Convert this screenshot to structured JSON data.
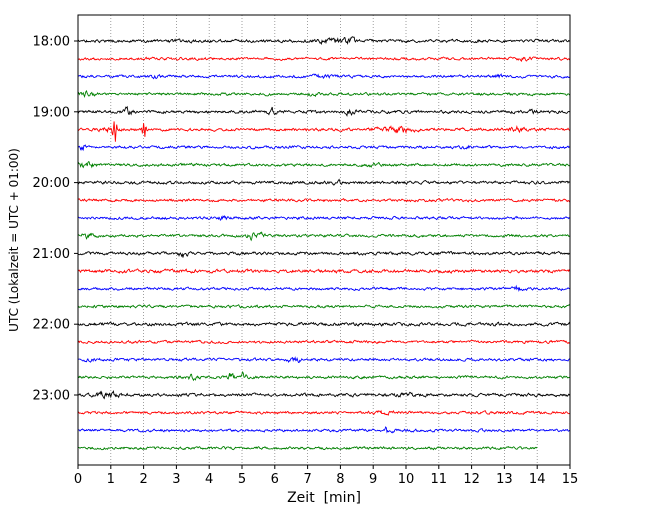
{
  "chart_data": {
    "type": "line",
    "title": "",
    "xlabel": "Zeit  [min]",
    "ylabel": "UTC (Lokalzeit = UTC + 01:00)",
    "xlim": [
      0,
      15
    ],
    "x_ticks": [
      0,
      1,
      2,
      3,
      4,
      5,
      6,
      7,
      8,
      9,
      10,
      11,
      12,
      13,
      14,
      15
    ],
    "y_tick_labels": [
      "18:00",
      "19:00",
      "20:00",
      "21:00",
      "22:00",
      "23:00"
    ],
    "traces_per_hour": 4,
    "minutes_per_trace": 15,
    "grid": {
      "vertical": true,
      "style": "dotted",
      "color": "#888888"
    },
    "colors_cycle": [
      "#000000",
      "#ff0000",
      "#0000ff",
      "#008000"
    ],
    "traces": [
      {
        "start": "18:00",
        "color": "#000000",
        "amp": 1.1,
        "events": [
          {
            "t": 2.9,
            "w": 0.15,
            "amp": 1.0
          },
          {
            "t": 7.7,
            "w": 0.5,
            "amp": 1.2
          },
          {
            "t": 8.3,
            "w": 0.2,
            "amp": 1.5
          }
        ]
      },
      {
        "start": "18:15",
        "color": "#ff0000",
        "amp": 1.0,
        "events": [
          {
            "t": 13.6,
            "w": 0.2,
            "amp": 0.8
          }
        ]
      },
      {
        "start": "18:30",
        "color": "#0000ff",
        "amp": 1.0,
        "events": [
          {
            "t": 2.3,
            "w": 0.2,
            "amp": 1.0
          },
          {
            "t": 7.5,
            "w": 0.3,
            "amp": 1.0
          },
          {
            "t": 12.9,
            "w": 0.15,
            "amp": 1.2
          }
        ]
      },
      {
        "start": "18:45",
        "color": "#008000",
        "amp": 1.0,
        "events": [
          {
            "t": 0.3,
            "w": 0.2,
            "amp": 1.5
          },
          {
            "t": 7.1,
            "w": 0.2,
            "amp": 0.8
          }
        ]
      },
      {
        "start": "19:00",
        "color": "#000000",
        "amp": 1.1,
        "events": [
          {
            "t": 1.5,
            "w": 0.12,
            "amp": 2.2
          },
          {
            "t": 5.9,
            "w": 0.12,
            "amp": 2.2
          },
          {
            "t": 8.3,
            "w": 0.15,
            "amp": 1.8
          },
          {
            "t": 13.9,
            "w": 0.12,
            "amp": 1.6
          }
        ]
      },
      {
        "start": "19:15",
        "color": "#ff0000",
        "amp": 1.1,
        "events": [
          {
            "t": 1.12,
            "w": 0.07,
            "amp": 11,
            "spike": true
          },
          {
            "t": 2.02,
            "w": 0.06,
            "amp": 8,
            "spike": true
          },
          {
            "t": 0.9,
            "w": 0.3,
            "amp": 1.0
          },
          {
            "t": 9.7,
            "w": 0.5,
            "amp": 1.8
          },
          {
            "t": 13.4,
            "w": 0.25,
            "amp": 1.4
          }
        ]
      },
      {
        "start": "19:30",
        "color": "#0000ff",
        "amp": 1.0,
        "events": [
          {
            "t": 0.15,
            "w": 0.1,
            "amp": 2.5
          },
          {
            "t": 11.8,
            "w": 0.2,
            "amp": 0.8
          }
        ]
      },
      {
        "start": "19:45",
        "color": "#008000",
        "amp": 1.0,
        "events": [
          {
            "t": 0.25,
            "w": 0.25,
            "amp": 1.8
          },
          {
            "t": 9.1,
            "w": 0.3,
            "amp": 0.8
          }
        ]
      },
      {
        "start": "20:00",
        "color": "#000000",
        "amp": 1.1,
        "events": [
          {
            "t": 7.9,
            "w": 0.15,
            "amp": 1.5
          }
        ]
      },
      {
        "start": "20:15",
        "color": "#ff0000",
        "amp": 1.0,
        "events": []
      },
      {
        "start": "20:30",
        "color": "#0000ff",
        "amp": 1.0,
        "events": [
          {
            "t": 4.4,
            "w": 0.2,
            "amp": 1.2
          }
        ]
      },
      {
        "start": "20:45",
        "color": "#008000",
        "amp": 1.0,
        "events": [
          {
            "t": 0.3,
            "w": 0.2,
            "amp": 1.6
          },
          {
            "t": 5.3,
            "w": 0.12,
            "amp": 2.8
          },
          {
            "t": 5.6,
            "w": 0.1,
            "amp": 1.5
          }
        ]
      },
      {
        "start": "21:00",
        "color": "#000000",
        "amp": 1.1,
        "events": [
          {
            "t": 3.2,
            "w": 0.12,
            "amp": 2.6
          }
        ]
      },
      {
        "start": "21:15",
        "color": "#ff0000",
        "amp": 1.25,
        "events": []
      },
      {
        "start": "21:30",
        "color": "#0000ff",
        "amp": 1.0,
        "events": [
          {
            "t": 13.4,
            "w": 0.15,
            "amp": 1.6
          }
        ]
      },
      {
        "start": "21:45",
        "color": "#008000",
        "amp": 1.0,
        "events": []
      },
      {
        "start": "22:00",
        "color": "#000000",
        "amp": 1.2,
        "events": []
      },
      {
        "start": "22:15",
        "color": "#ff0000",
        "amp": 1.0,
        "events": []
      },
      {
        "start": "22:30",
        "color": "#0000ff",
        "amp": 1.0,
        "events": [
          {
            "t": 0.3,
            "w": 0.2,
            "amp": 1.2
          },
          {
            "t": 6.6,
            "w": 0.2,
            "amp": 1.8
          }
        ]
      },
      {
        "start": "22:45",
        "color": "#008000",
        "amp": 1.0,
        "events": [
          {
            "t": 3.5,
            "w": 0.2,
            "amp": 1.5
          },
          {
            "t": 4.65,
            "w": 0.1,
            "amp": 3.2
          },
          {
            "t": 5.05,
            "w": 0.1,
            "amp": 2.6
          }
        ]
      },
      {
        "start": "23:00",
        "color": "#000000",
        "amp": 1.1,
        "events": [
          {
            "t": 0.9,
            "w": 0.35,
            "amp": 1.6
          },
          {
            "t": 10.0,
            "w": 0.3,
            "amp": 0.8
          }
        ]
      },
      {
        "start": "23:15",
        "color": "#ff0000",
        "amp": 1.0,
        "events": [
          {
            "t": 9.3,
            "w": 0.25,
            "amp": 1.0
          }
        ]
      },
      {
        "start": "23:30",
        "color": "#0000ff",
        "amp": 1.0,
        "events": [
          {
            "t": 9.45,
            "w": 0.12,
            "amp": 2.6
          }
        ]
      },
      {
        "start": "23:45",
        "color": "#008000",
        "amp": 1.0,
        "duration_min": 14,
        "events": []
      }
    ]
  }
}
